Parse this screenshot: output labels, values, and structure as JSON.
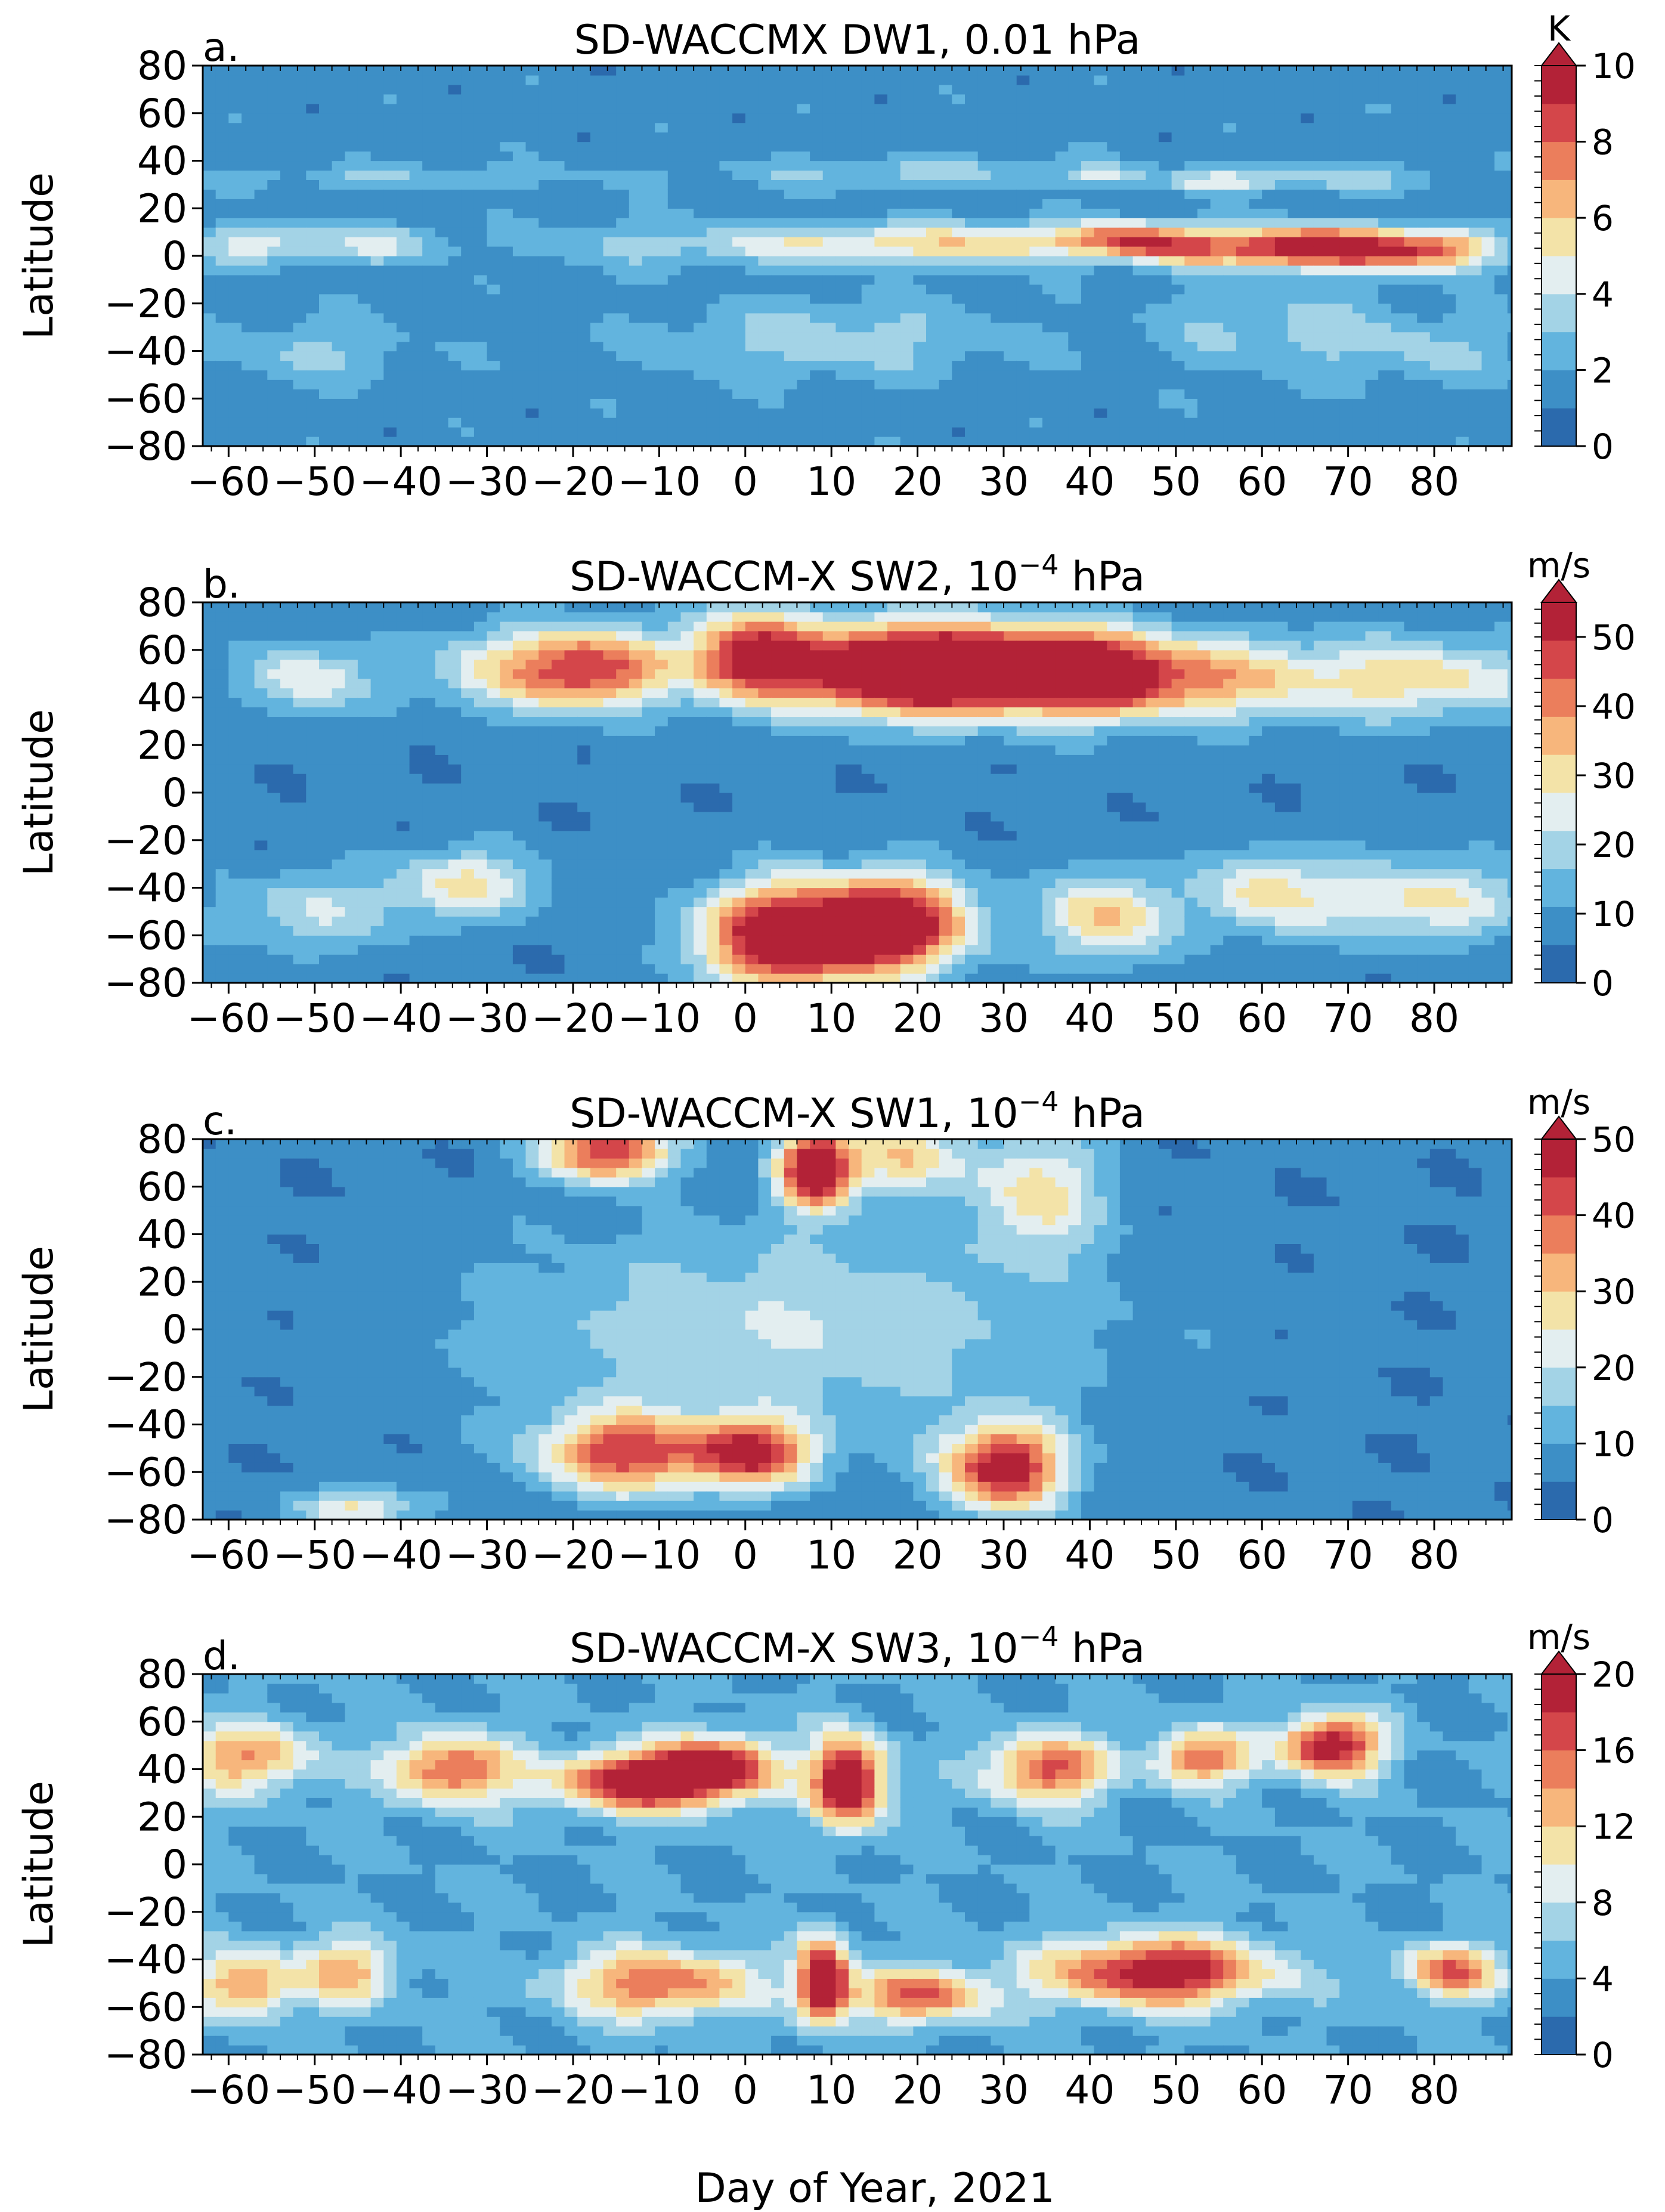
{
  "figure": {
    "xlabel": "Day of Year, 2021",
    "ylabel": "Latitude",
    "xticks": [
      -60,
      -50,
      -40,
      -30,
      -20,
      -10,
      0,
      10,
      20,
      30,
      40,
      50,
      60,
      70,
      80
    ],
    "yticks": [
      80,
      60,
      40,
      20,
      0,
      -20,
      -40,
      -60,
      -80
    ],
    "xlim": [
      -63,
      89
    ],
    "ylim": [
      -80,
      80
    ],
    "palette": [
      "#2b6aad",
      "#3d8fc6",
      "#62b4de",
      "#a3d3e6",
      "#e3eef0",
      "#f3e3a8",
      "#f7b67c",
      "#eb7e5c",
      "#d4464a",
      "#b32237"
    ]
  },
  "chart_data": [
    {
      "type": "heatmap",
      "panel": "a.",
      "title": "SD-WACCMX DW1, 0.01 hPa",
      "title_parts": {
        "pre": "SD-WACCMX DW1, 0.01 hPa",
        "sup": "",
        "post": ""
      },
      "units": "K",
      "zlim": [
        0,
        10
      ],
      "cbar_ticks": [
        0,
        2,
        4,
        6,
        8,
        10
      ],
      "features": [
        {
          "day": -56,
          "lat": 5,
          "amp": 3.2,
          "sd": 5,
          "sl": 6
        },
        {
          "day": -42,
          "lat": 5,
          "amp": 2.6,
          "sd": 5,
          "sl": 6
        },
        {
          "day": -12,
          "lat": 5,
          "amp": 1.6,
          "sd": 10,
          "sl": 7
        },
        {
          "day": 12,
          "lat": 5,
          "amp": 3.6,
          "sd": 10,
          "sl": 6
        },
        {
          "day": 32,
          "lat": 6,
          "amp": 4.0,
          "sd": 8,
          "sl": 6
        },
        {
          "day": 44,
          "lat": 7,
          "amp": 5.0,
          "sd": 4,
          "sl": 5
        },
        {
          "day": 50,
          "lat": 4,
          "amp": 4.0,
          "sd": 4,
          "sl": 6
        },
        {
          "day": 62,
          "lat": 4,
          "amp": 7.2,
          "sd": 7,
          "sl": 6
        },
        {
          "day": 74,
          "lat": 3,
          "amp": 6.2,
          "sd": 7,
          "sl": 6
        },
        {
          "day": 82,
          "lat": 2,
          "amp": 3.2,
          "sd": 4,
          "sl": 6
        },
        {
          "day": 42,
          "lat": 34,
          "amp": 2.3,
          "sd": 3,
          "sl": 3
        },
        {
          "day": 55,
          "lat": 31,
          "amp": 2.6,
          "sd": 4,
          "sl": 3
        },
        {
          "day": 68,
          "lat": 33,
          "amp": 2.0,
          "sd": 9,
          "sl": 4
        },
        {
          "day": -40,
          "lat": 33,
          "amp": 1.4,
          "sd": 15,
          "sl": 4
        },
        {
          "day": 20,
          "lat": 35,
          "amp": 1.8,
          "sd": 16,
          "sl": 5
        },
        {
          "day": -50,
          "lat": -40,
          "amp": 1.6,
          "sd": 8,
          "sl": 10
        },
        {
          "day": 10,
          "lat": -35,
          "amp": 2.0,
          "sd": 14,
          "sl": 12
        },
        {
          "day": 62,
          "lat": -30,
          "amp": 1.8,
          "sd": 10,
          "sl": 14
        },
        {
          "day": 80,
          "lat": -40,
          "amp": 1.4,
          "sd": 8,
          "sl": 10
        }
      ],
      "background": 1.5
    },
    {
      "type": "heatmap",
      "panel": "b.",
      "title": "SD-WACCM-X SW2, 10−4 hPa",
      "title_parts": {
        "pre": "SD-WACCM-X SW2, 10",
        "sup": "−4",
        "post": " hPa"
      },
      "units": "m/s",
      "zlim": [
        0,
        55
      ],
      "cbar_ticks": [
        0,
        10,
        20,
        30,
        40,
        50
      ],
      "features": [
        {
          "day": -51,
          "lat": 48,
          "amp": 20,
          "sd": 5,
          "sl": 10
        },
        {
          "day": -28,
          "lat": 52,
          "amp": 20,
          "sd": 7,
          "sl": 12
        },
        {
          "day": -17,
          "lat": 52,
          "amp": 38,
          "sd": 6,
          "sl": 12
        },
        {
          "day": 1,
          "lat": 57,
          "amp": 50,
          "sd": 5,
          "sl": 13
        },
        {
          "day": 16,
          "lat": 52,
          "amp": 56,
          "sd": 7,
          "sl": 13
        },
        {
          "day": 30,
          "lat": 52,
          "amp": 56,
          "sd": 8,
          "sl": 13
        },
        {
          "day": 42,
          "lat": 50,
          "amp": 40,
          "sd": 6,
          "sl": 12
        },
        {
          "day": 55,
          "lat": 48,
          "amp": 26,
          "sd": 8,
          "sl": 12
        },
        {
          "day": 78,
          "lat": 48,
          "amp": 24,
          "sd": 10,
          "sl": 12
        },
        {
          "day": -32,
          "lat": -38,
          "amp": 21,
          "sd": 6,
          "sl": 10
        },
        {
          "day": -50,
          "lat": -50,
          "amp": 14,
          "sd": 8,
          "sl": 12
        },
        {
          "day": 5,
          "lat": -60,
          "amp": 58,
          "sd": 7,
          "sl": 15
        },
        {
          "day": 18,
          "lat": -55,
          "amp": 48,
          "sd": 6,
          "sl": 14
        },
        {
          "day": 42,
          "lat": -52,
          "amp": 28,
          "sd": 5,
          "sl": 13
        },
        {
          "day": 60,
          "lat": -42,
          "amp": 21,
          "sd": 5,
          "sl": 12
        },
        {
          "day": 78,
          "lat": -45,
          "amp": 22,
          "sd": 9,
          "sl": 12
        }
      ],
      "background": 7
    },
    {
      "type": "heatmap",
      "panel": "c.",
      "title": "SD-WACCM-X SW1, 10−4 hPa",
      "title_parts": {
        "pre": "SD-WACCM-X SW1, 10",
        "sup": "−4",
        "post": " hPa"
      },
      "units": "m/s",
      "zlim": [
        0,
        50
      ],
      "cbar_ticks": [
        0,
        10,
        20,
        30,
        40,
        50
      ],
      "features": [
        {
          "day": -16,
          "lat": 75,
          "amp": 40,
          "sd": 5,
          "sl": 9
        },
        {
          "day": 8,
          "lat": 68,
          "amp": 48,
          "sd": 3,
          "sl": 12
        },
        {
          "day": 18,
          "lat": 72,
          "amp": 24,
          "sd": 5,
          "sl": 10
        },
        {
          "day": 34,
          "lat": 58,
          "amp": 22,
          "sd": 5,
          "sl": 18
        },
        {
          "day": -14,
          "lat": -52,
          "amp": 36,
          "sd": 7,
          "sl": 12
        },
        {
          "day": 1,
          "lat": -52,
          "amp": 38,
          "sd": 5,
          "sl": 10
        },
        {
          "day": 30,
          "lat": -58,
          "amp": 44,
          "sd": 5,
          "sl": 13
        },
        {
          "day": -45,
          "lat": -75,
          "amp": 20,
          "sd": 5,
          "sl": 6
        },
        {
          "day": 5,
          "lat": 0,
          "amp": 14,
          "sd": 25,
          "sl": 30
        }
      ],
      "background": 6
    },
    {
      "type": "heatmap",
      "panel": "d.",
      "title": "SD-WACCM-X SW3, 10−4 hPa",
      "title_parts": {
        "pre": "SD-WACCM-X SW3, 10",
        "sup": "−4",
        "post": " hPa"
      },
      "units": "m/s",
      "zlim": [
        0,
        20
      ],
      "cbar_ticks": [
        0,
        4,
        8,
        12,
        16,
        20
      ],
      "features": [
        {
          "day": -58,
          "lat": 45,
          "amp": 10,
          "sd": 6,
          "sl": 10
        },
        {
          "day": -34,
          "lat": 40,
          "amp": 13,
          "sd": 5,
          "sl": 10
        },
        {
          "day": -12,
          "lat": 35,
          "amp": 17,
          "sd": 7,
          "sl": 9
        },
        {
          "day": -3,
          "lat": 42,
          "amp": 13,
          "sd": 5,
          "sl": 9
        },
        {
          "day": 12,
          "lat": 35,
          "amp": 19,
          "sd": 3,
          "sl": 13
        },
        {
          "day": 35,
          "lat": 40,
          "amp": 13,
          "sd": 5,
          "sl": 10
        },
        {
          "day": 53,
          "lat": 45,
          "amp": 12,
          "sd": 4,
          "sl": 8
        },
        {
          "day": 68,
          "lat": 50,
          "amp": 17,
          "sd": 4,
          "sl": 9
        },
        {
          "day": -58,
          "lat": -50,
          "amp": 11,
          "sd": 4,
          "sl": 10
        },
        {
          "day": -46,
          "lat": -45,
          "amp": 9,
          "sd": 4,
          "sl": 10
        },
        {
          "day": -10,
          "lat": -50,
          "amp": 12,
          "sd": 8,
          "sl": 10
        },
        {
          "day": 9,
          "lat": -48,
          "amp": 19,
          "sd": 2,
          "sl": 12
        },
        {
          "day": 20,
          "lat": -55,
          "amp": 12,
          "sd": 6,
          "sl": 8
        },
        {
          "day": 48,
          "lat": -45,
          "amp": 17,
          "sd": 9,
          "sl": 10
        },
        {
          "day": 82,
          "lat": -45,
          "amp": 12,
          "sd": 4,
          "sl": 8
        }
      ],
      "background": 4
    }
  ]
}
